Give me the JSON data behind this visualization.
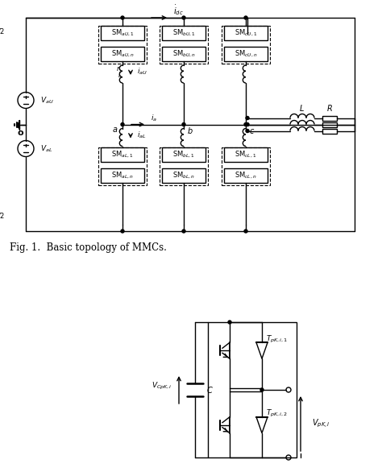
{
  "fig_caption": "Fig. 1.  Basic topology of MMCs.",
  "background_color": "#ffffff",
  "line_color": "#000000",
  "text_color": "#000000",
  "figsize": [
    4.74,
    5.91
  ],
  "dpi": 100
}
